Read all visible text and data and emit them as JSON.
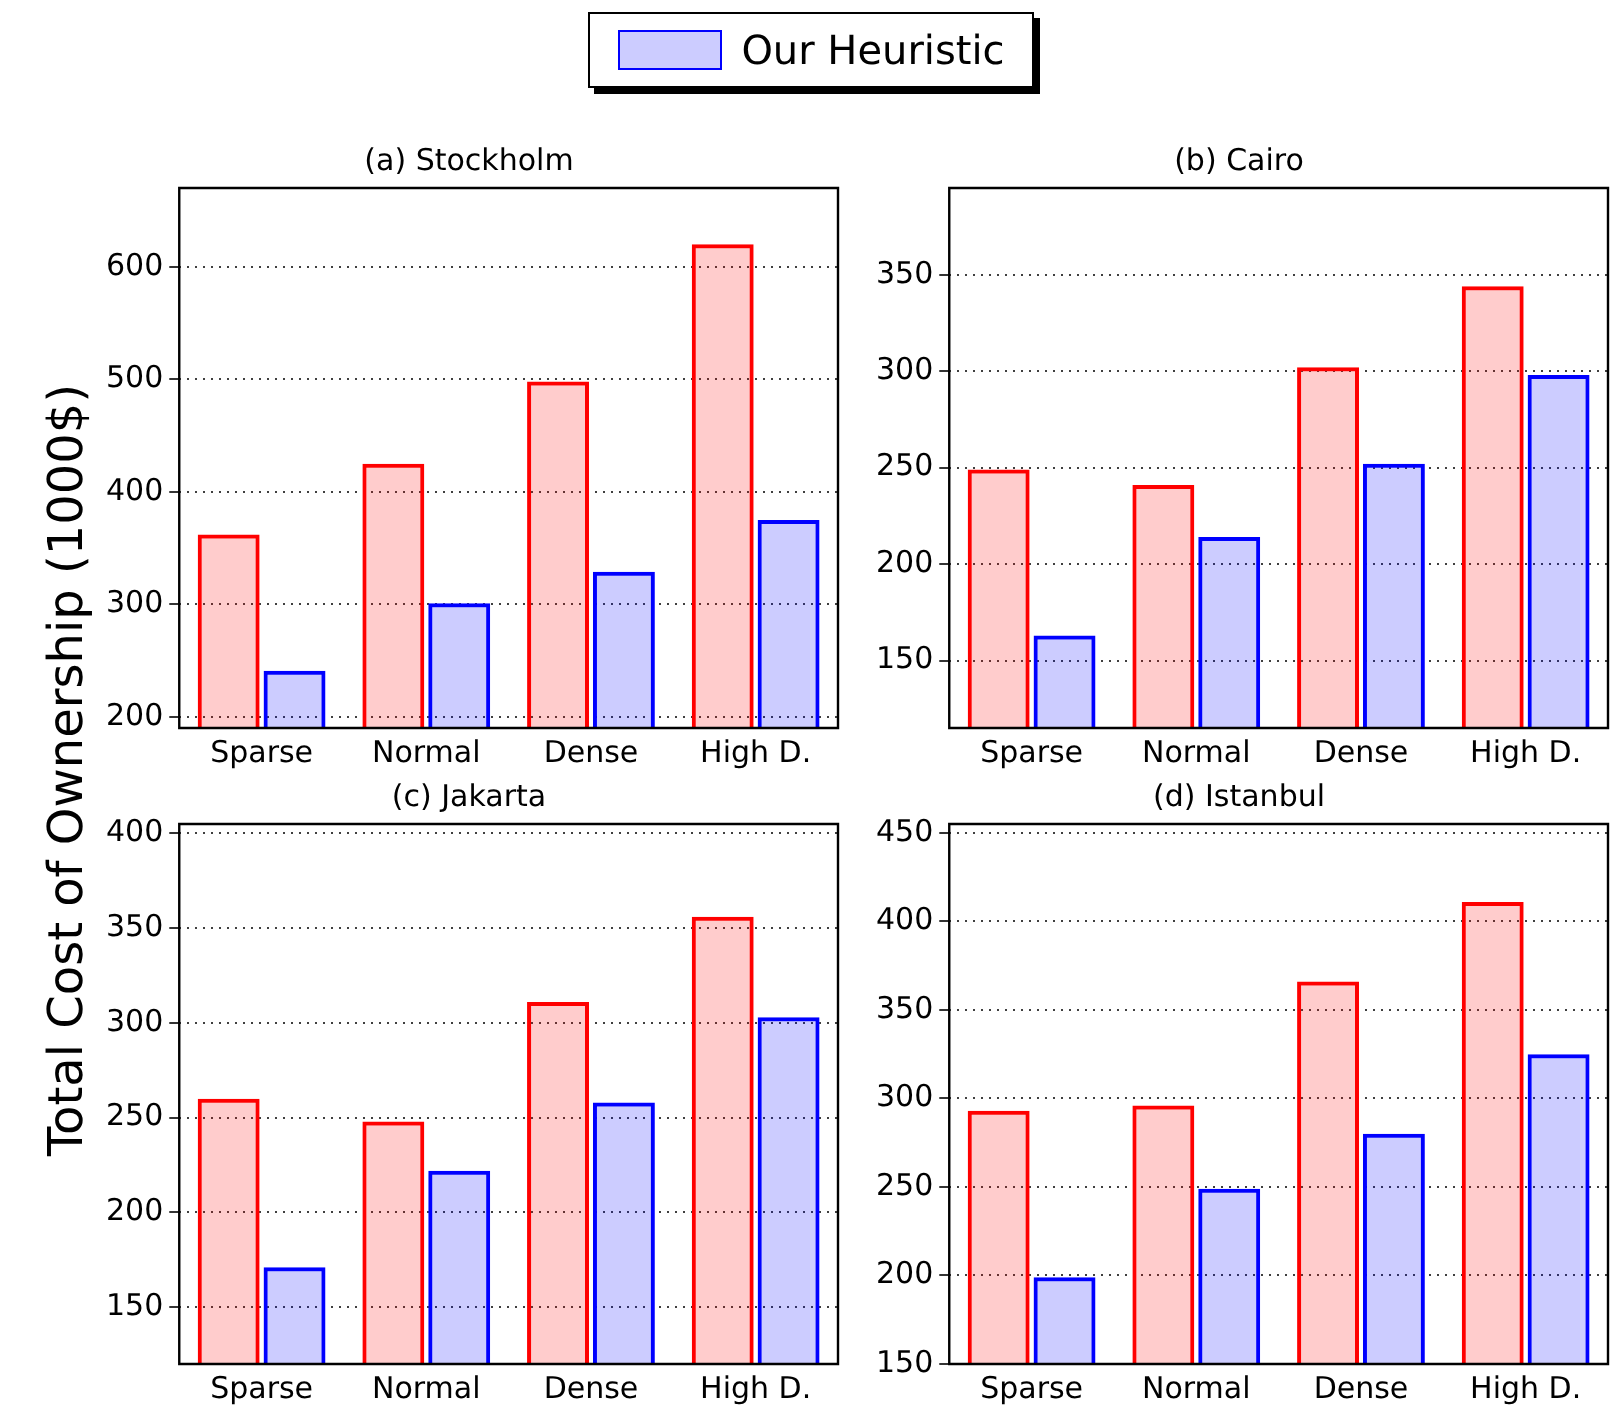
{
  "chart_data": [
    {
      "type": "bar",
      "title": "(a) Stockholm",
      "ylabel": "Total Cost of Ownership (1000$)",
      "categories": [
        "Sparse",
        "Normal",
        "Dense",
        "High D."
      ],
      "legend": "top",
      "series": [
        {
          "color": "#ff0000",
          "values": [
            362,
            425,
            498,
            620
          ]
        },
        {
          "name": "Our Heuristic",
          "color": "#0000ff",
          "values": [
            241,
            301,
            329,
            375
          ]
        }
      ],
      "ylim": [
        190,
        670
      ],
      "yticks": [
        200,
        300,
        400,
        500,
        600
      ],
      "grid": "y"
    },
    {
      "type": "bar",
      "title": "(b) Cairo",
      "categories": [
        "Sparse",
        "Normal",
        "Dense",
        "High D."
      ],
      "series": [
        {
          "color": "#ff0000",
          "values": [
            249,
            241,
            302,
            344
          ]
        },
        {
          "name": "Our Heuristic",
          "color": "#0000ff",
          "values": [
            163,
            214,
            252,
            298
          ]
        }
      ],
      "ylim": [
        115,
        395
      ],
      "yticks": [
        150,
        200,
        250,
        300,
        350
      ],
      "grid": "y"
    },
    {
      "type": "bar",
      "title": "(c) Jakarta",
      "categories": [
        "Sparse",
        "Normal",
        "Dense",
        "High D."
      ],
      "series": [
        {
          "color": "#ff0000",
          "values": [
            260,
            248,
            311,
            356
          ]
        },
        {
          "name": "Our Heuristic",
          "color": "#0000ff",
          "values": [
            171,
            222,
            258,
            303
          ]
        }
      ],
      "ylim": [
        120,
        405
      ],
      "yticks": [
        150,
        200,
        250,
        300,
        350,
        400
      ],
      "grid": "y"
    },
    {
      "type": "bar",
      "title": "(d) Istanbul",
      "categories": [
        "Sparse",
        "Normal",
        "Dense",
        "High D."
      ],
      "series": [
        {
          "color": "#ff0000",
          "values": [
            293,
            296,
            366,
            411
          ]
        },
        {
          "name": "Our Heuristic",
          "color": "#0000ff",
          "values": [
            199,
            249,
            280,
            325
          ]
        }
      ],
      "ylim": [
        150,
        455
      ],
      "yticks": [
        150,
        200,
        250,
        300,
        350,
        400,
        450
      ],
      "grid": "y"
    }
  ]
}
